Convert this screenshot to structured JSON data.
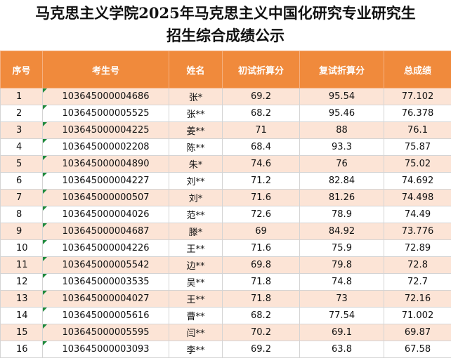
{
  "title": [
    "马克思主义学院2025年马克思主义中国化研究专业研究生",
    "招生综合成绩公示"
  ],
  "table": {
    "header": [
      "序号",
      "考生号",
      "姓名",
      "初试折算分",
      "复试折算分",
      "总成绩"
    ],
    "rows": [
      [
        1,
        "103645000004686",
        "张*",
        69.2,
        95.54,
        77.102
      ],
      [
        2,
        "103645000005525",
        "张**",
        68.2,
        95.46,
        76.378
      ],
      [
        3,
        "103645000004225",
        "姜**",
        71,
        88,
        76.1
      ],
      [
        4,
        "103645000002208",
        "陈**",
        68.4,
        93.3,
        75.87
      ],
      [
        5,
        "103645000004890",
        "朱*",
        74.6,
        76,
        75.02
      ],
      [
        6,
        "103645000004227",
        "刘**",
        71.2,
        82.84,
        74.692
      ],
      [
        7,
        "103645000000507",
        "刘*",
        71.6,
        81.26,
        74.498
      ],
      [
        8,
        "103645000004026",
        "范**",
        72.6,
        78.9,
        74.49
      ],
      [
        9,
        "103645000004687",
        "滕*",
        69,
        84.92,
        73.776
      ],
      [
        10,
        "103645000004226",
        "王**",
        71.6,
        75.9,
        72.89
      ],
      [
        11,
        "103645000005542",
        "边**",
        69.8,
        79.8,
        72.8
      ],
      [
        12,
        "103645000003535",
        "吴**",
        71.8,
        74.8,
        72.7
      ],
      [
        13,
        "103645000004027",
        "王**",
        71.8,
        73,
        72.16
      ],
      [
        14,
        "103645000005616",
        "曹**",
        68.2,
        77.54,
        71.002
      ],
      [
        15,
        "103645000005595",
        "闫**",
        70.2,
        69.1,
        69.87
      ],
      [
        16,
        "103645000003093",
        "李**",
        69.2,
        63.8,
        67.58
      ]
    ]
  }
}
